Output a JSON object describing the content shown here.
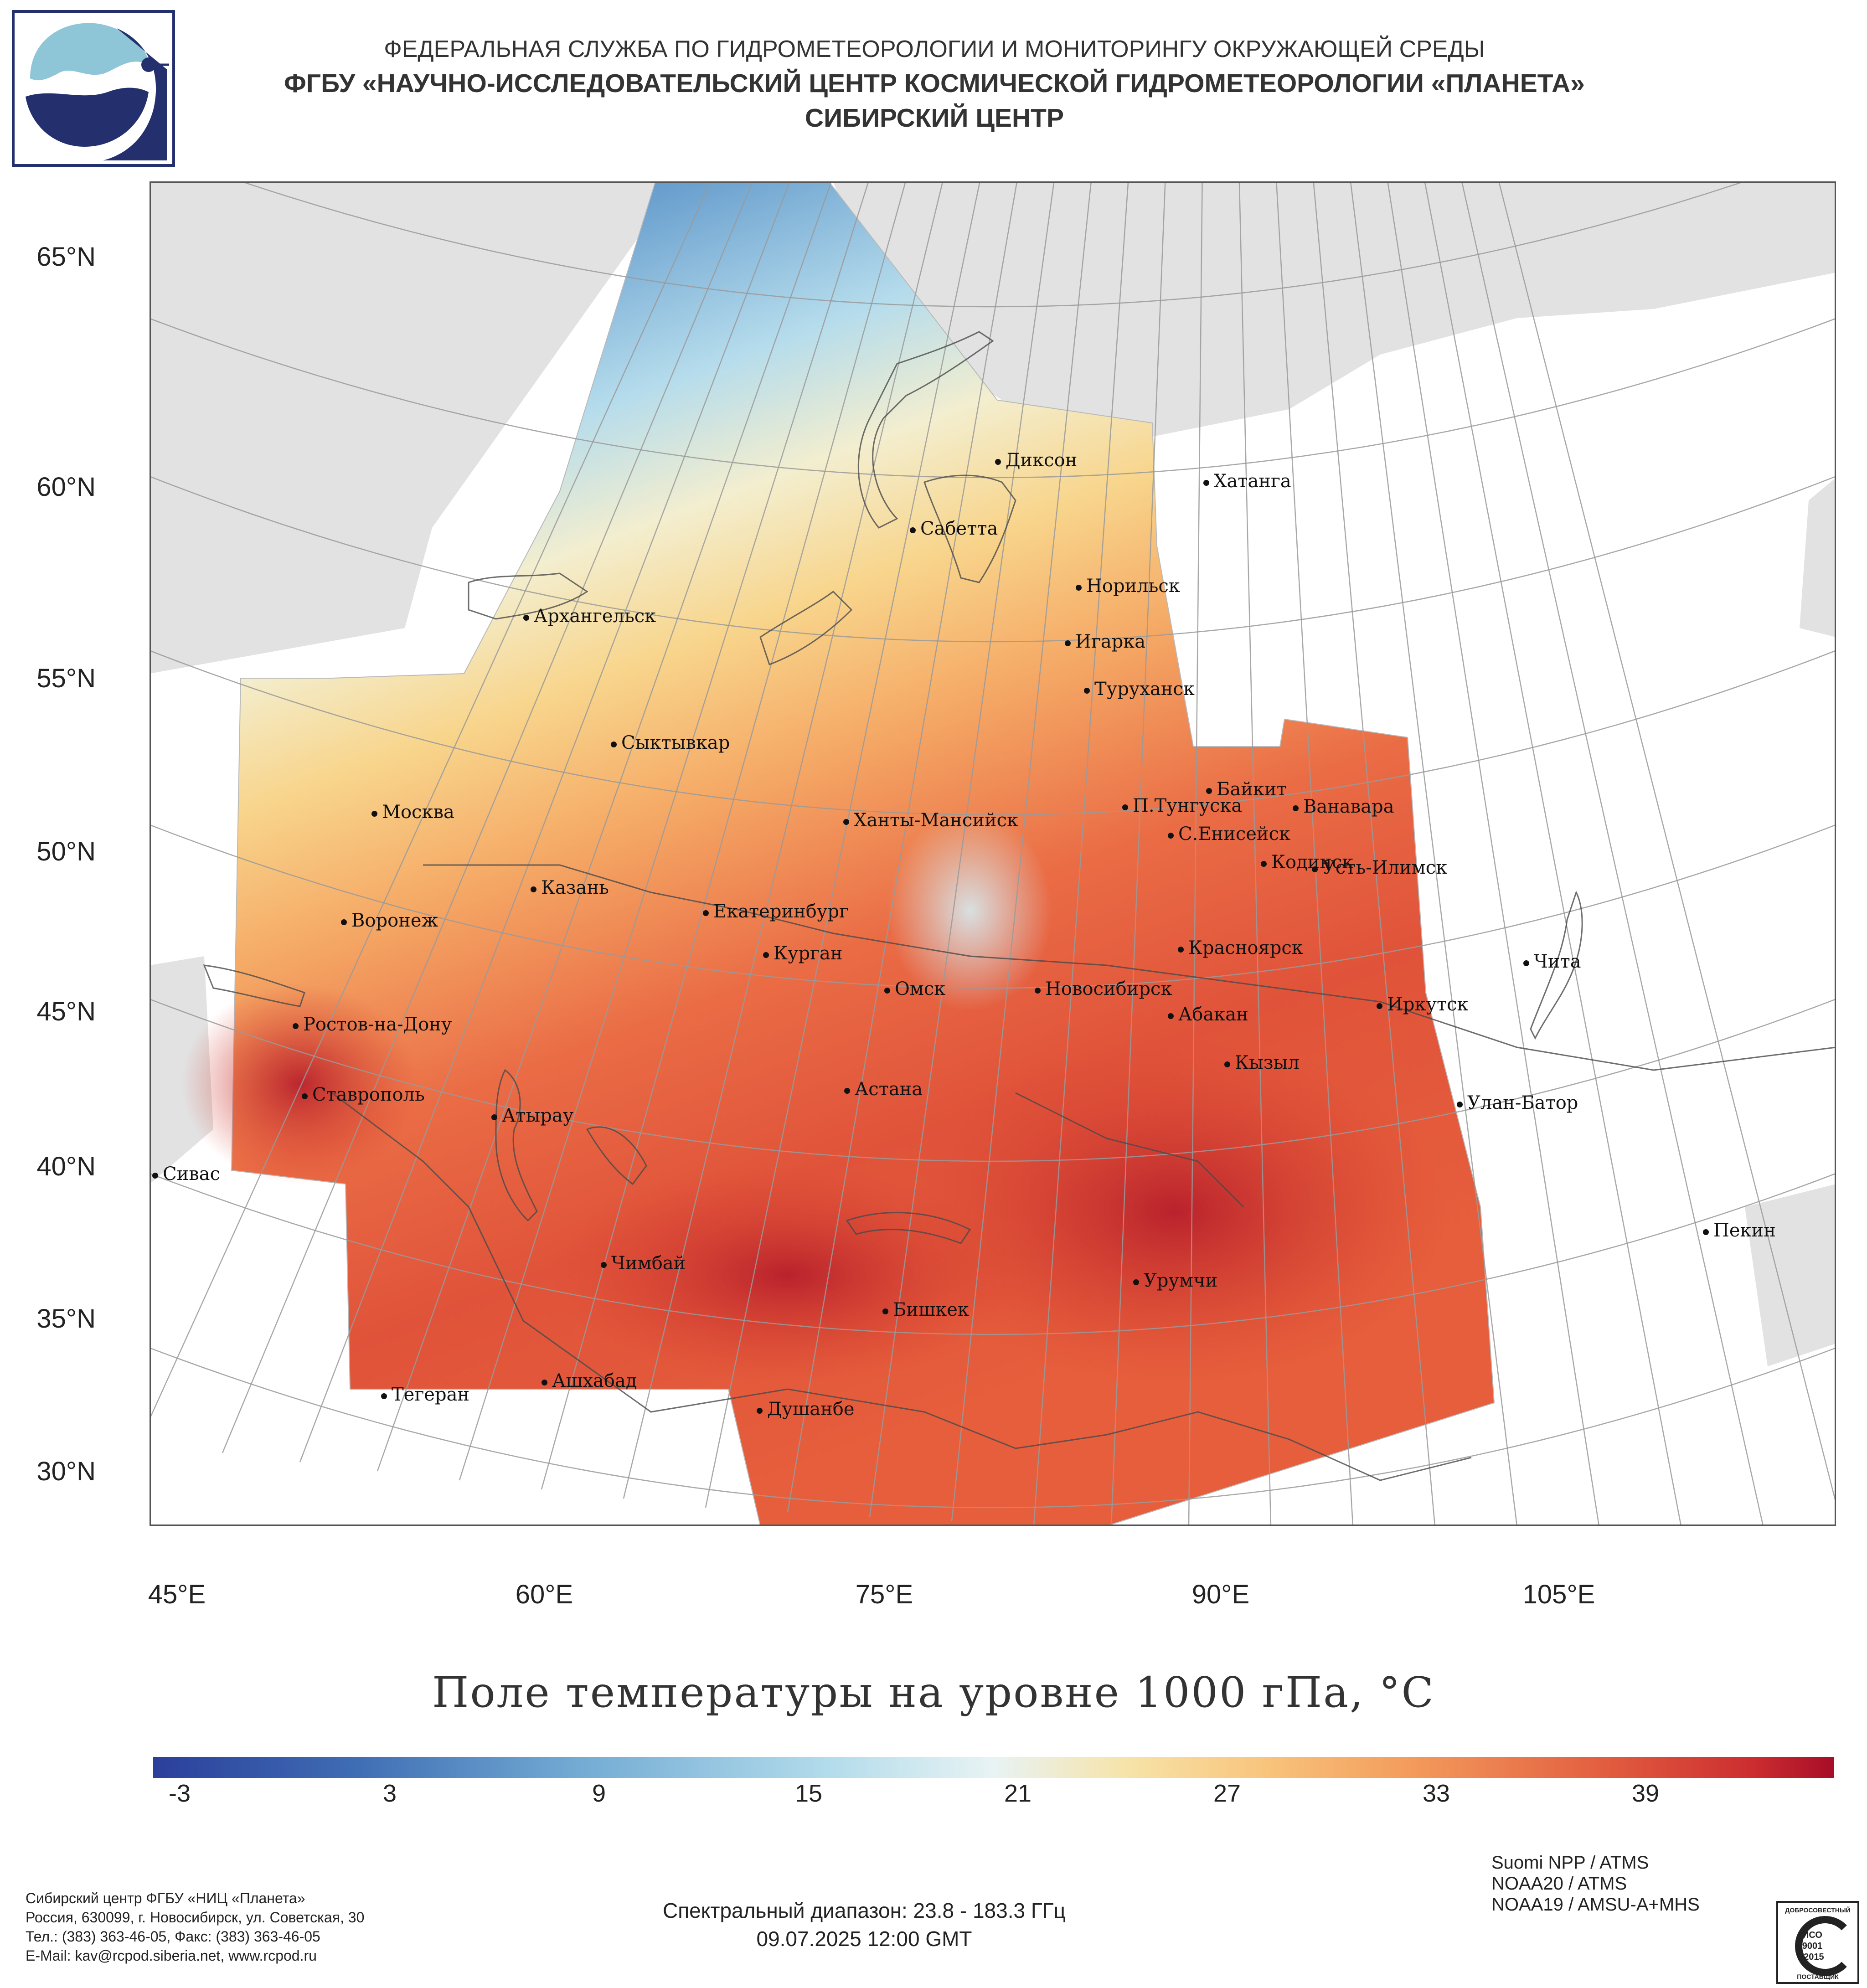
{
  "header": {
    "line1": "ФЕДЕРАЛЬНАЯ СЛУЖБА ПО ГИДРОМЕТЕОРОЛОГИИ И МОНИТОРИНГУ ОКРУЖАЮЩЕЙ СРЕДЫ",
    "line2": "ФГБУ «НАУЧНО-ИССЛЕДОВАТЕЛЬСКИЙ ЦЕНТР КОСМИЧЕСКОЙ ГИДРОМЕТЕОРОЛОГИИ «ПЛАНЕТА»",
    "line3": "СИБИРСКИЙ ЦЕНТР"
  },
  "map": {
    "title": "Поле температуры на уровне 1000 гПа, °С",
    "lat_labels": [
      "65°N",
      "60°N",
      "55°N",
      "50°N",
      "45°N",
      "40°N",
      "35°N",
      "30°N"
    ],
    "lon_labels": [
      "45°E",
      "60°E",
      "75°E",
      "90°E",
      "105°E"
    ],
    "cities": [
      "Диксон",
      "Хатанга",
      "Сабетта",
      "Норильск",
      "Игарка",
      "Туруханск",
      "Архангельск",
      "Сыктывкар",
      "Москва",
      "Байкит",
      "П.Тунгуска",
      "Ванавара",
      "Ханты-Мансийск",
      "С.Енисейск",
      "Кодинск",
      "Усть-Илимск",
      "Казань",
      "Екатеринбург",
      "Воронеж",
      "Красноярск",
      "Курган",
      "Чита",
      "Омск",
      "Новосибирск",
      "Иркутск",
      "Ростов-на-Дону",
      "Абакан",
      "Кызыл",
      "Ставрополь",
      "Астана",
      "Улан-Батор",
      "Атырау",
      "Сивас",
      "Пекин",
      "Чимбай",
      "Урумчи",
      "Бишкек",
      "Ашхабад",
      "Тегеран",
      "Душанбе"
    ],
    "colors": {
      "cold": "#2b3f9b",
      "cool": "#a6d4ea",
      "neutral": "#e8f3f4",
      "warm": "#f7d488",
      "hot": "#e6583a",
      "extreme": "#b0102a",
      "land_outside": "#e2e2e2",
      "grid": "#9a9a9a"
    }
  },
  "colorbar": {
    "ticks": [
      "-3",
      "3",
      "9",
      "15",
      "21",
      "27",
      "33",
      "39"
    ]
  },
  "footer": {
    "org": [
      "Сибирский центр ФГБУ «НИЦ «Планета»",
      "Россия, 630099, г. Новосибирск, ул. Советская, 30",
      "Тел.: (383) 363-46-05, Факс: (383) 363-46-05",
      "E-Mail: kav@rcpod.siberia.net, www.rcpod.ru"
    ],
    "spectral": "Спектральный диапазон: 23.8 - 183.3 ГГц",
    "datetime": "09.07.2025 12:00 GMT",
    "satellites": [
      "Suomi NPP / ATMS",
      "NOAA20 / ATMS",
      "NOAA19 / AMSU-A+MHS"
    ]
  },
  "iso": {
    "top": "ДОБРОСОВЕСТНЫЙ",
    "mid1": "ИСО",
    "mid2": "9001",
    "mid3": "-2015",
    "bottom": "ПОСТАВЩИК"
  }
}
